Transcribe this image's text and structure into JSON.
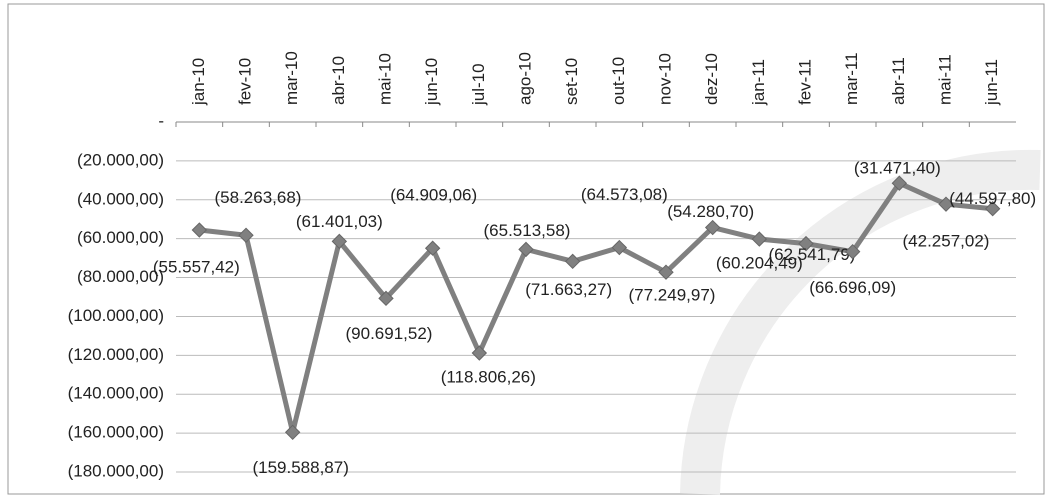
{
  "chart_data": {
    "type": "line",
    "categories": [
      "jan-10",
      "fev-10",
      "mar-10",
      "abr-10",
      "mai-10",
      "jun-10",
      "jul-10",
      "ago-10",
      "set-10",
      "out-10",
      "nov-10",
      "dez-10",
      "jan-11",
      "fev-11",
      "mar-11",
      "abr-11",
      "mai-11",
      "jun-11"
    ],
    "series": [
      {
        "color": "#808080",
        "values": [
          -55557.42,
          -58263.68,
          -159588.87,
          -61401.03,
          -90691.52,
          -64909.06,
          -118806.26,
          -65513.58,
          -71663.27,
          -64573.08,
          -77249.97,
          -54280.7,
          -60204.49,
          -62541.79,
          -66696.09,
          -31471.4,
          -42257.02,
          -44597.8
        ],
        "value_labels": [
          "(55.557,42)",
          "(58.263,68)",
          "(159.588,87)",
          "(61.401,03)",
          "(90.691,52)",
          "(64.909,06)",
          "(118.806,26)",
          "(65.513,58)",
          "(71.663,27)",
          "(64.573,08)",
          "(77.249,97)",
          "(54.280,70)",
          "(60.204,49)",
          "(62.541,79)",
          "(66.696,09)",
          "(31.471,40)",
          "(42.257,02)",
          "(44.597,80)"
        ]
      }
    ],
    "ylim": [
      -180000,
      0
    ],
    "yticks": [
      {
        "value": 0,
        "label": "-"
      },
      {
        "value": -20000,
        "label": "(20.000,00)"
      },
      {
        "value": -40000,
        "label": "(40.000,00)"
      },
      {
        "value": -60000,
        "label": "(60.000,00)"
      },
      {
        "value": -80000,
        "label": "(80.000,00)"
      },
      {
        "value": -100000,
        "label": "(100.000,00)"
      },
      {
        "value": -120000,
        "label": "(120.000,00)"
      },
      {
        "value": -140000,
        "label": "(140.000,00)"
      },
      {
        "value": -160000,
        "label": "(160.000,00)"
      },
      {
        "value": -180000,
        "label": "(180.000,00)"
      }
    ],
    "grid": true
  }
}
